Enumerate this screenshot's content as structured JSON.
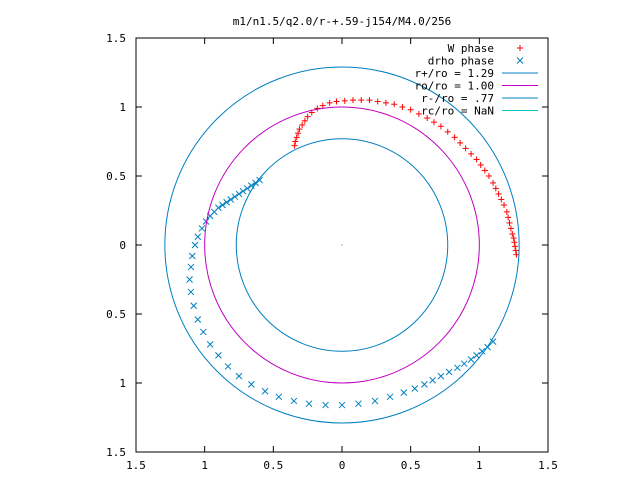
{
  "chart_data": {
    "type": "scatter",
    "title": "m1/n1.5/q2.0/r-+.59-j154/M4.0/256",
    "xlabel": "",
    "ylabel": "",
    "xlim": [
      -1.5,
      1.5
    ],
    "ylim": [
      -1.5,
      1.5
    ],
    "x_ticks": [
      -1.5,
      -1,
      -0.5,
      0,
      0.5,
      1,
      1.5
    ],
    "x_tick_labels": [
      "1.5",
      "1",
      "0.5",
      "0",
      "0.5",
      "1",
      "1.5"
    ],
    "y_ticks": [
      1.5,
      1,
      0.5,
      0,
      -0.5,
      -1,
      -1.5
    ],
    "y_tick_labels": [
      "1.5",
      "1",
      "0.5",
      "0",
      "0.5",
      "1",
      "1.5"
    ],
    "grid": false,
    "legend_position": "top-right",
    "series": [
      {
        "name": "W phase",
        "kind": "points",
        "marker": "plus",
        "color": "#ff0000",
        "x": [
          1.27,
          1.265,
          1.26,
          1.255,
          1.25,
          1.24,
          1.23,
          1.22,
          1.21,
          1.2,
          1.18,
          1.16,
          1.14,
          1.12,
          1.1,
          1.07,
          1.04,
          1.01,
          0.98,
          0.94,
          0.9,
          0.86,
          0.82,
          0.77,
          0.72,
          0.67,
          0.62,
          0.56,
          0.5,
          0.44,
          0.38,
          0.32,
          0.26,
          0.2,
          0.14,
          0.08,
          0.02,
          -0.04,
          -0.09,
          -0.14,
          -0.18,
          -0.22,
          -0.25,
          -0.27,
          -0.29,
          -0.31,
          -0.32,
          -0.33,
          -0.34,
          -0.345
        ],
        "y": [
          -0.07,
          -0.04,
          -0.01,
          0.02,
          0.05,
          0.08,
          0.12,
          0.16,
          0.2,
          0.24,
          0.29,
          0.33,
          0.37,
          0.41,
          0.45,
          0.5,
          0.54,
          0.58,
          0.62,
          0.66,
          0.7,
          0.74,
          0.78,
          0.82,
          0.86,
          0.89,
          0.92,
          0.95,
          0.98,
          1.0,
          1.02,
          1.03,
          1.04,
          1.05,
          1.05,
          1.05,
          1.045,
          1.04,
          1.03,
          1.01,
          0.99,
          0.96,
          0.93,
          0.9,
          0.87,
          0.84,
          0.81,
          0.78,
          0.75,
          0.72
        ]
      },
      {
        "name": "drho phase",
        "kind": "points",
        "marker": "x",
        "color": "#0080c0",
        "x": [
          -0.6,
          -0.63,
          -0.66,
          -0.69,
          -0.72,
          -0.75,
          -0.78,
          -0.81,
          -0.84,
          -0.87,
          -0.9,
          -0.93,
          -0.96,
          -0.99,
          -1.02,
          -1.05,
          -1.07,
          -1.09,
          -1.1,
          -1.11,
          -1.1,
          -1.08,
          -1.05,
          -1.01,
          -0.96,
          -0.9,
          -0.83,
          -0.75,
          -0.66,
          -0.56,
          -0.46,
          -0.35,
          -0.24,
          -0.12,
          0.0,
          0.12,
          0.24,
          0.35,
          0.45,
          0.53,
          0.6,
          0.66,
          0.72,
          0.78,
          0.84,
          0.89,
          0.94,
          0.98,
          1.02,
          1.06,
          1.1
        ],
        "y": [
          0.47,
          0.45,
          0.43,
          0.41,
          0.39,
          0.37,
          0.35,
          0.33,
          0.31,
          0.29,
          0.27,
          0.24,
          0.21,
          0.17,
          0.12,
          0.06,
          0.0,
          -0.08,
          -0.16,
          -0.25,
          -0.34,
          -0.44,
          -0.54,
          -0.63,
          -0.72,
          -0.8,
          -0.88,
          -0.95,
          -1.01,
          -1.06,
          -1.1,
          -1.13,
          -1.15,
          -1.16,
          -1.16,
          -1.15,
          -1.13,
          -1.1,
          -1.07,
          -1.04,
          -1.01,
          -0.98,
          -0.95,
          -0.92,
          -0.89,
          -0.86,
          -0.83,
          -0.8,
          -0.77,
          -0.74,
          -0.7
        ]
      },
      {
        "name": "r+/ro = 1.29",
        "kind": "circle",
        "radius": 1.29,
        "color": "#0080c0"
      },
      {
        "name": "ro/ro = 1.00",
        "kind": "circle",
        "radius": 1.0,
        "color": "#c000c0"
      },
      {
        "name": "r-/ro = .77",
        "kind": "circle",
        "radius": 0.77,
        "color": "#0080c0"
      },
      {
        "name": "rc/ro = NaN",
        "kind": "circle",
        "radius": null,
        "color": "#00c0c0"
      }
    ]
  }
}
